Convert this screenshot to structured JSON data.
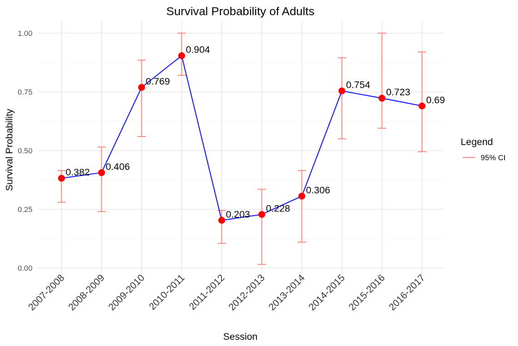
{
  "chart_data": {
    "type": "line",
    "title": "Survival Probability of Adults",
    "xlabel": "Session",
    "ylabel": "Survival Probability",
    "categories": [
      "2007-2008",
      "2008-2009",
      "2009-2010",
      "2010-2011",
      "2011-2012",
      "2012-2013",
      "2013-2014",
      "2014-2015",
      "2015-2016",
      "2016-2017"
    ],
    "values": [
      0.382,
      0.406,
      0.769,
      0.904,
      0.203,
      0.228,
      0.306,
      0.754,
      0.723,
      0.69
    ],
    "data_labels": [
      "0.382",
      "0.406",
      "0.769",
      "0.904",
      "0.203",
      "0.228",
      "0.306",
      "0.754",
      "0.723",
      "0.69"
    ],
    "ci_lower": [
      0.28,
      0.24,
      0.56,
      0.82,
      0.105,
      0.015,
      0.11,
      0.55,
      0.595,
      0.495
    ],
    "ci_upper": [
      0.415,
      0.515,
      0.885,
      1.0,
      0.245,
      0.335,
      0.415,
      0.895,
      1.0,
      0.92
    ],
    "ylim": [
      0,
      1
    ],
    "yticks": [
      0,
      0.25,
      0.5,
      0.75,
      1.0
    ],
    "ytick_labels": [
      "0.00",
      "0.25",
      "0.50",
      "0.75",
      "1.00"
    ],
    "grid": true,
    "line_color": "#0000ff",
    "point_color": "#ff0000",
    "ci_color": "#f8766d",
    "legend": {
      "title": "Legend",
      "position": "right",
      "items": [
        {
          "label": "95% CI",
          "color": "#f8766d"
        }
      ]
    }
  }
}
